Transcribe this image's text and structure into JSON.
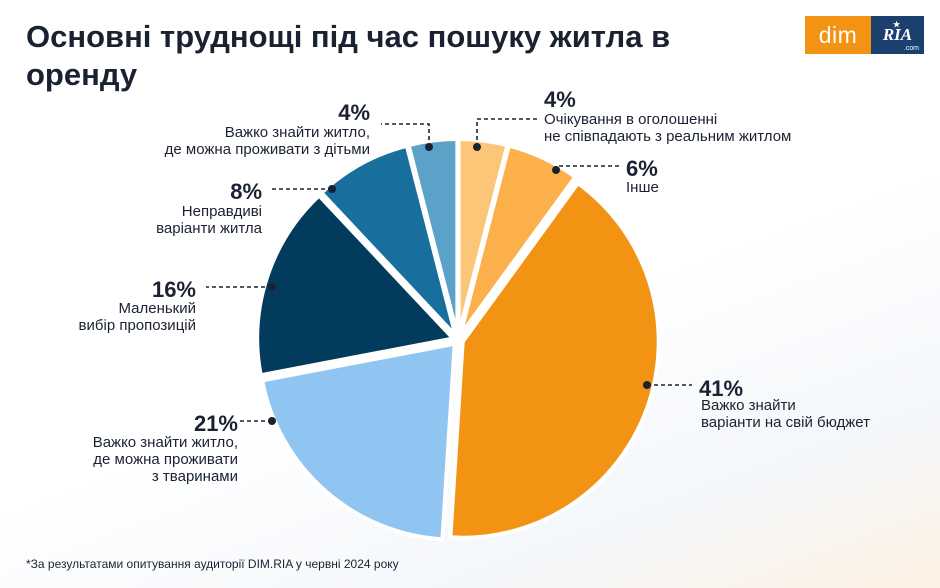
{
  "title": "Основні труднощі під час пошуку житла в оренду",
  "logo": {
    "dim": "dim",
    "ria": "RIA",
    "com": ".com",
    "star": "★"
  },
  "footnote": "*За результатами опитування аудиторії DIM.RIA у червні 2024 року",
  "colors": {
    "accent": "#f39314",
    "brand_dark": "#1b3f6e"
  },
  "chart_data": {
    "type": "pie",
    "title": "Основні труднощі під час пошуку житла в оренду",
    "slices": [
      {
        "value": 41,
        "label_value": "41%",
        "label_lines": [
          "Важко знайти",
          "варіанти на свій бюджет"
        ],
        "color": "#f39314"
      },
      {
        "value": 21,
        "label_value": "21%",
        "label_lines": [
          "Важко знайти житло,",
          "де можна проживати",
          "з тваринами"
        ],
        "color": "#8fc5f0"
      },
      {
        "value": 16,
        "label_value": "16%",
        "label_lines": [
          "Маленький",
          "вибір пропозицій"
        ],
        "color": "#033b5c"
      },
      {
        "value": 8,
        "label_value": "8%",
        "label_lines": [
          "Неправдиві",
          "варіанти житла"
        ],
        "color": "#186f9e"
      },
      {
        "value": 4,
        "label_value": "4%",
        "label_lines": [
          "Важко знайти житло,",
          "де можна проживати з дітьми"
        ],
        "color": "#5aa2c7"
      },
      {
        "value": 4,
        "label_value": "4%",
        "label_lines": [
          "Очікування в оголошенні",
          "не співпадають з реальним житлом"
        ],
        "color": "#fcc679"
      },
      {
        "value": 6,
        "label_value": "6%",
        "label_lines": [
          "Інше"
        ],
        "color": "#fbb04b"
      }
    ]
  }
}
